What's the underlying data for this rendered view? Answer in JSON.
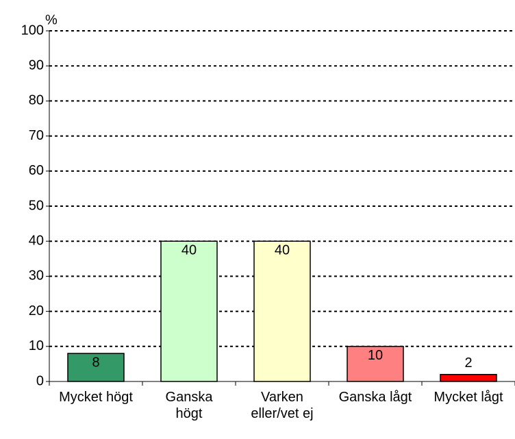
{
  "chart_data": {
    "type": "bar",
    "y_unit_label": "%",
    "categories": [
      "Mycket högt",
      "Ganska högt",
      "Varken eller/vet ej",
      "Ganska lågt",
      "Mycket lågt"
    ],
    "values": [
      8,
      40,
      40,
      10,
      2
    ],
    "colors": [
      "#339966",
      "#ccffcc",
      "#ffffcc",
      "#ff8080",
      "#ff0000"
    ],
    "ylim": [
      0,
      100
    ],
    "yticks": [
      0,
      10,
      20,
      30,
      40,
      50,
      60,
      70,
      80,
      90,
      100
    ],
    "grid": true
  }
}
